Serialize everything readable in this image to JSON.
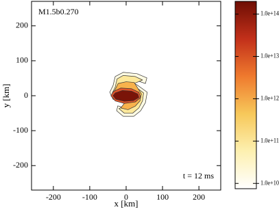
{
  "chart_data": {
    "type": "contour",
    "xlabel": "x [km]",
    "ylabel": "y [km]",
    "annotations": [
      "M1.5b0.270",
      "t = 12 ms"
    ],
    "xlim": [
      -260,
      260
    ],
    "ylim": [
      -270,
      270
    ],
    "xticks": [
      -200,
      -100,
      0,
      100,
      200
    ],
    "yticks": [
      -200,
      -100,
      0,
      100,
      200
    ],
    "levels": [
      {
        "value": 10000000000,
        "color": "#fffbe3",
        "x": [
          -36,
          -30,
          -8,
          30,
          57,
          53,
          30,
          8,
          30,
          58,
          53,
          40,
          21,
          -8,
          -26,
          -23,
          -4,
          15,
          -8,
          -36,
          -45
        ],
        "y": [
          29,
          55,
          67,
          63,
          51,
          35,
          43,
          43,
          31,
          10,
          -20,
          -43,
          -59,
          -59,
          -43,
          -29,
          -35,
          -29,
          -20,
          -10,
          10
        ]
      },
      {
        "value": 100000000000,
        "color": "#fde89a",
        "x": [
          -30,
          -25,
          -8,
          25,
          45,
          25,
          5,
          25,
          48,
          45,
          35,
          18,
          -5,
          -20,
          -3,
          12,
          -8,
          -30,
          -38
        ],
        "y": [
          25,
          48,
          58,
          55,
          45,
          36,
          36,
          26,
          8,
          -15,
          -35,
          -50,
          -50,
          -37,
          -28,
          -24,
          -16,
          -8,
          8
        ]
      },
      {
        "value": 1000000000000,
        "color": "#f8b24c",
        "x": [
          -30,
          -22,
          0,
          22,
          30,
          42,
          38,
          25,
          5,
          -15,
          -5,
          -28,
          -38
        ],
        "y": [
          18,
          35,
          40,
          38,
          25,
          5,
          -15,
          -30,
          -40,
          -35,
          -22,
          -10,
          5
        ]
      },
      {
        "value": 10000000000000,
        "color": "#e0552a",
        "x": [
          -35,
          -15,
          15,
          35,
          40,
          25,
          -5,
          -30,
          -42
        ],
        "y": [
          12,
          22,
          20,
          10,
          -5,
          -18,
          -22,
          -15,
          0
        ]
      },
      {
        "value": 100000000000000,
        "color": "#7a1408",
        "x": [
          -30,
          -10,
          15,
          32,
          35,
          20,
          -5,
          -28,
          -36
        ],
        "y": [
          8,
          15,
          13,
          5,
          -5,
          -14,
          -16,
          -10,
          0
        ]
      }
    ],
    "colorbar": {
      "log": true,
      "lim": [
        7500000000,
        200000000000000
      ],
      "colors": [
        "#ffffff",
        "#fdf0b0",
        "#f7c85a",
        "#ef7a2e",
        "#c2301a",
        "#6e0e04"
      ],
      "ticks": [
        {
          "value": 10000000000,
          "label": "1.0e+10"
        },
        {
          "value": 100000000000,
          "label": "1.0e+11"
        },
        {
          "value": 1000000000000,
          "label": "1.0e+12"
        },
        {
          "value": 10000000000000,
          "label": "1.0e+13"
        },
        {
          "value": 100000000000000,
          "label": "1.0e+14"
        }
      ]
    }
  }
}
